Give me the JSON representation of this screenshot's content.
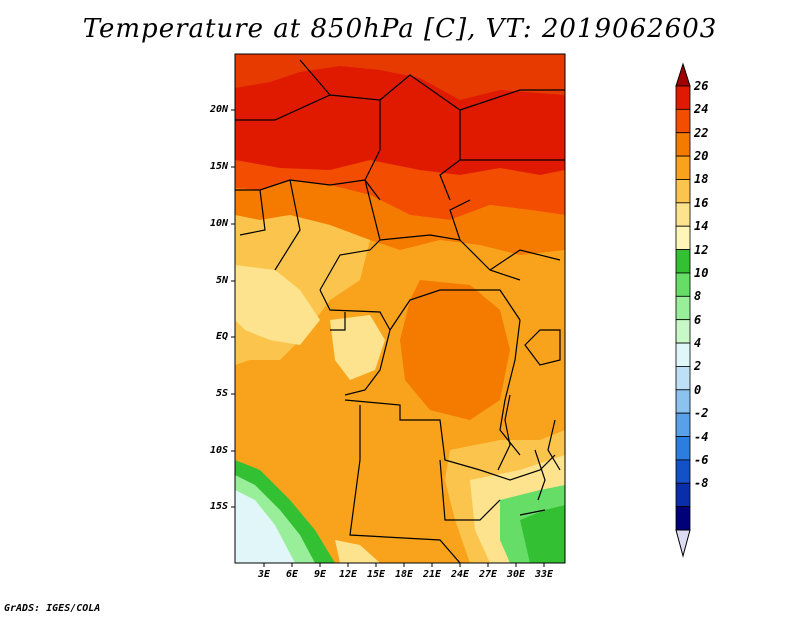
{
  "title": "Temperature at 850hPa [C], VT: 2019062603",
  "credit": "GrADS: IGES/COLA",
  "map": {
    "lat_labels": [
      "20N",
      "15N",
      "10N",
      "5N",
      "EQ",
      "5S",
      "10S",
      "15S"
    ],
    "lon_labels": [
      "3E",
      "6E",
      "9E",
      "12E",
      "15E",
      "18E",
      "21E",
      "24E",
      "27E",
      "30E",
      "33E"
    ]
  },
  "colorbar": {
    "labels": [
      "26",
      "24",
      "22",
      "20",
      "18",
      "16",
      "14",
      "12",
      "10",
      "8",
      "6",
      "4",
      "2",
      "0",
      "-2",
      "-4",
      "-6",
      "-8"
    ],
    "colors": [
      "#a00000",
      "#e01a00",
      "#f24d00",
      "#f57a00",
      "#f9a31c",
      "#fbc54d",
      "#fde38e",
      "#fef6b8",
      "#33c033",
      "#66dd66",
      "#99ee99",
      "#c8f8c8",
      "#e0f6f8",
      "#bde0f7",
      "#8cc2f0",
      "#5aa0e8",
      "#2d7ce0",
      "#1450c8",
      "#0a2eaa",
      "#000078",
      "#dcdcf5"
    ]
  }
}
